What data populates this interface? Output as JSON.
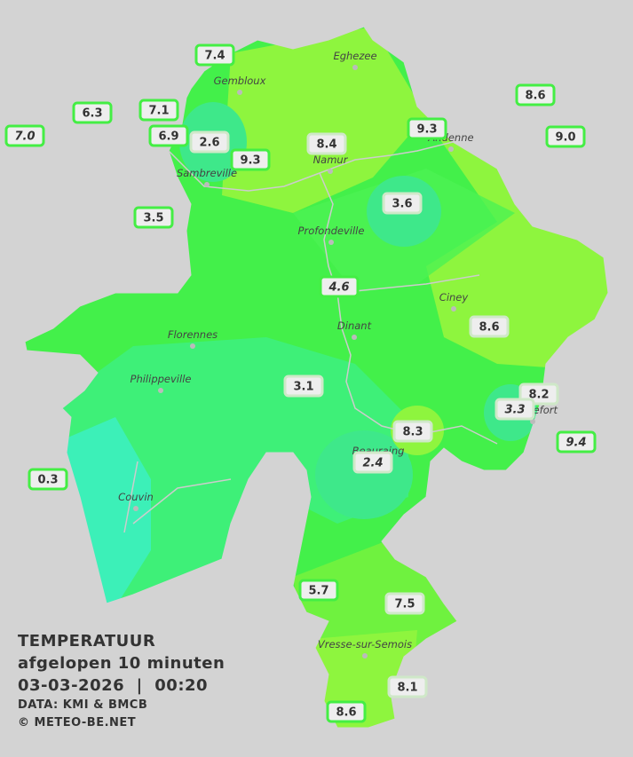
{
  "title": {
    "heading": "TEMPERATUUR",
    "period": "afgelopen 10 minuten",
    "timestamp": "03-03-2026  |  00:20",
    "source": "DATA: KMI & BMCB",
    "copyright": "© METEO-BE.NET"
  },
  "places": [
    "Eghezee",
    "Gembloux",
    "Andenne",
    "Namur",
    "Sambreville",
    "Profondeville",
    "Ciney",
    "Dinant",
    "Florennes",
    "Philippeville",
    "Beauraing",
    "Rochefort",
    "Couvin",
    "Vresse-sur-Semois"
  ],
  "stations": [
    "7.4",
    "6.3",
    "7.1",
    "7.0",
    "6.9",
    "2.6",
    "9.3",
    "8.4",
    "9.3",
    "8.6",
    "9.0",
    "3.5",
    "3.6",
    "4.6",
    "8.6",
    "3.1",
    "8.2",
    "3.3",
    "8.3",
    "9.4",
    "2.4",
    "0.3",
    "5.7",
    "7.5",
    "8.1",
    "8.6"
  ]
}
